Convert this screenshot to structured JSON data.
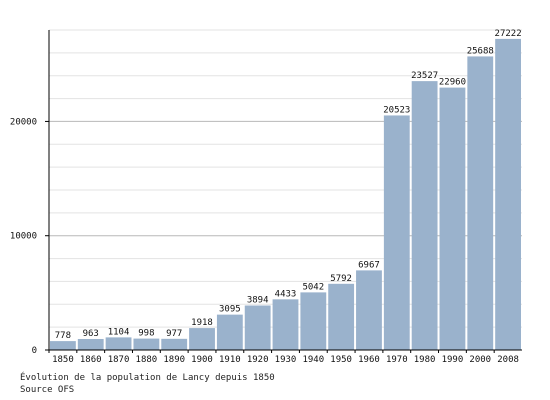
{
  "chart_data": {
    "type": "bar",
    "categories": [
      "1850",
      "1860",
      "1870",
      "1880",
      "1890",
      "1900",
      "1910",
      "1920",
      "1930",
      "1940",
      "1950",
      "1960",
      "1970",
      "1980",
      "1990",
      "2000",
      "2008"
    ],
    "values": [
      778,
      963,
      1104,
      998,
      977,
      1918,
      3095,
      3894,
      4433,
      5042,
      5792,
      6967,
      20523,
      23527,
      22960,
      25688,
      27222
    ],
    "ylim": [
      0,
      28000
    ],
    "yticks": [
      0,
      10000,
      20000
    ],
    "grid": true,
    "bar_color": "#9ab2cc"
  },
  "captions": {
    "line1": "Évolution de la population de Lancy depuis 1850",
    "line2": "Source OFS"
  }
}
